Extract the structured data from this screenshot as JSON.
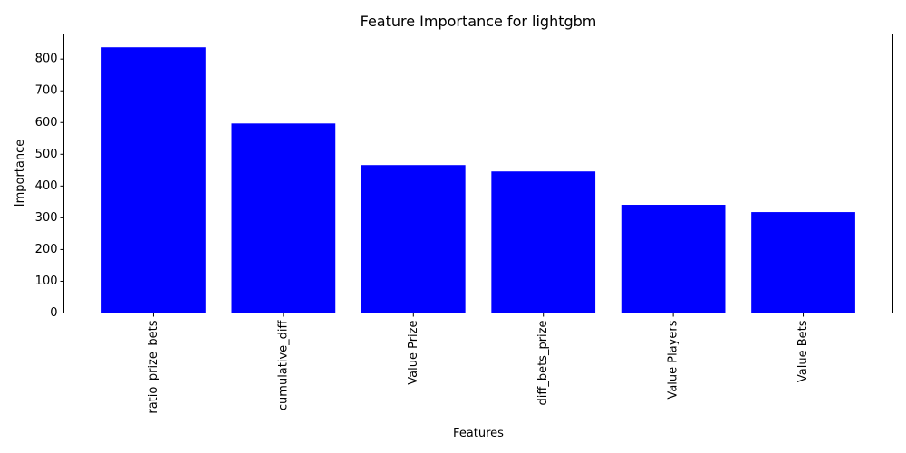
{
  "chart_data": {
    "type": "bar",
    "title": "Feature Importance for lightgbm",
    "xlabel": "Features",
    "ylabel": "Importance",
    "categories": [
      "ratio_prize_bets",
      "cumulative_diff",
      "Value Prize",
      "diff_bets_prize",
      "Value Players",
      "Value Bets"
    ],
    "values": [
      837,
      597,
      466,
      446,
      341,
      318
    ],
    "ylim": [
      0,
      879
    ],
    "yticks": [
      0,
      100,
      200,
      300,
      400,
      500,
      600,
      700,
      800
    ],
    "bar_color": "#0000ff",
    "grid": false,
    "xtick_rotation": "vertical"
  }
}
